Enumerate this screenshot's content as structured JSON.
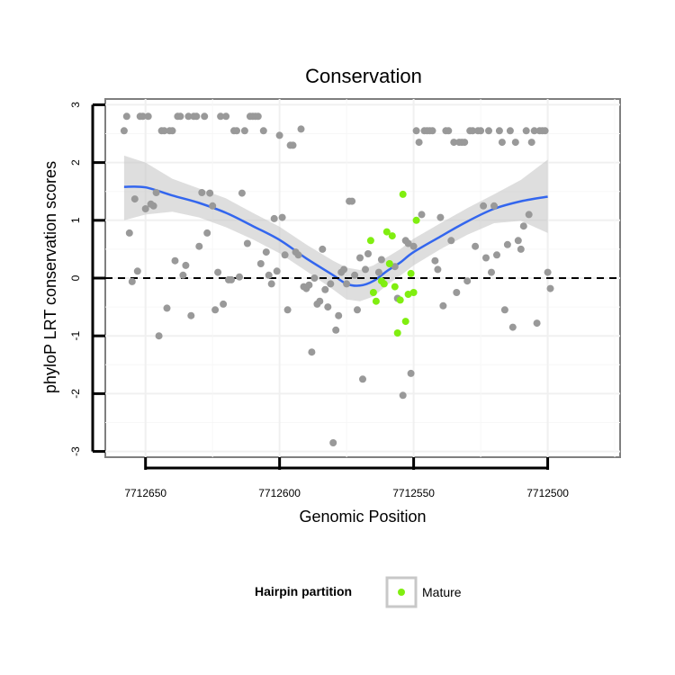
{
  "chart_data": {
    "type": "scatter",
    "title": "Conservation",
    "xlabel": "Genomic Position",
    "ylabel": "phyloP LRT conservation scores",
    "x_reversed": true,
    "xlim": [
      7712665,
      7712473
    ],
    "ylim": [
      -3.1,
      3.1
    ],
    "x_ticks": [
      7712650,
      7712600,
      7712550,
      7712500
    ],
    "x_tick_labels": [
      "7712650",
      "7712600",
      "7712550",
      "7712500"
    ],
    "y_ticks": [
      -3,
      -2,
      -1,
      0,
      1,
      2,
      3
    ],
    "y_tick_labels": [
      "-3",
      "-2",
      "-1",
      "0",
      "1",
      "2",
      "3"
    ],
    "grid": true,
    "reference_line": {
      "y": 0,
      "style": "dashed"
    },
    "colors": {
      "other_points": "#999999",
      "mature_points": "#80ee10",
      "smooth_line": "#3366ee",
      "confidence_band": "#c8c8c8"
    },
    "legend": {
      "title": "Hairpin partition",
      "position": "bottom",
      "entries": [
        {
          "label": "Mature",
          "color": "#80ee10"
        }
      ]
    },
    "series": [
      {
        "role": "other",
        "points": [
          [
            7712658,
            2.55
          ],
          [
            7712657,
            2.8
          ],
          [
            7712656,
            0.78
          ],
          [
            7712655,
            -0.06
          ],
          [
            7712654,
            1.37
          ],
          [
            7712653,
            0.12
          ],
          [
            7712652,
            2.8
          ],
          [
            7712651,
            2.8
          ],
          [
            7712650,
            1.2
          ],
          [
            7712649,
            2.8
          ],
          [
            7712648,
            1.28
          ],
          [
            7712647,
            1.25
          ],
          [
            7712646,
            1.48
          ],
          [
            7712645,
            -1.0
          ],
          [
            7712644,
            2.55
          ],
          [
            7712643,
            2.55
          ],
          [
            7712642,
            -0.52
          ],
          [
            7712641,
            2.55
          ],
          [
            7712640,
            2.55
          ],
          [
            7712639,
            0.3
          ],
          [
            7712638,
            2.8
          ],
          [
            7712637,
            2.8
          ],
          [
            7712636,
            0.05
          ],
          [
            7712635,
            0.22
          ],
          [
            7712634,
            2.8
          ],
          [
            7712633,
            -0.65
          ],
          [
            7712632,
            2.8
          ],
          [
            7712631,
            2.8
          ],
          [
            7712630,
            0.55
          ],
          [
            7712629,
            1.48
          ],
          [
            7712628,
            2.8
          ],
          [
            7712627,
            0.78
          ],
          [
            7712626,
            1.47
          ],
          [
            7712625,
            1.25
          ],
          [
            7712624,
            -0.55
          ],
          [
            7712623,
            0.1
          ],
          [
            7712622,
            2.8
          ],
          [
            7712621,
            -0.45
          ],
          [
            7712620,
            2.8
          ],
          [
            7712619,
            -0.03
          ],
          [
            7712618,
            -0.03
          ],
          [
            7712617,
            2.55
          ],
          [
            7712616,
            2.55
          ],
          [
            7712615,
            0.02
          ],
          [
            7712614,
            1.47
          ],
          [
            7712613,
            2.55
          ],
          [
            7712612,
            0.6
          ],
          [
            7712611,
            2.8
          ],
          [
            7712610,
            2.8
          ],
          [
            7712609,
            2.8
          ],
          [
            7712608,
            2.8
          ],
          [
            7712607,
            0.25
          ],
          [
            7712606,
            2.55
          ],
          [
            7712605,
            0.45
          ],
          [
            7712604,
            0.05
          ],
          [
            7712603,
            -0.1
          ],
          [
            7712602,
            1.03
          ],
          [
            7712601,
            0.12
          ],
          [
            7712600,
            2.47
          ],
          [
            7712599,
            1.05
          ],
          [
            7712598,
            0.4
          ],
          [
            7712597,
            -0.55
          ],
          [
            7712596,
            2.3
          ],
          [
            7712595,
            2.3
          ],
          [
            7712594,
            0.45
          ],
          [
            7712593,
            0.4
          ],
          [
            7712592,
            2.58
          ],
          [
            7712591,
            -0.15
          ],
          [
            7712590,
            -0.18
          ],
          [
            7712589,
            -0.12
          ],
          [
            7712588,
            -1.28
          ],
          [
            7712587,
            0.0
          ],
          [
            7712586,
            -0.45
          ],
          [
            7712585,
            -0.4
          ],
          [
            7712584,
            0.5
          ],
          [
            7712583,
            -0.2
          ],
          [
            7712582,
            -0.5
          ],
          [
            7712581,
            -0.1
          ],
          [
            7712580,
            -2.85
          ],
          [
            7712579,
            -0.9
          ],
          [
            7712578,
            -0.65
          ],
          [
            7712577,
            0.1
          ],
          [
            7712576,
            0.15
          ],
          [
            7712575,
            -0.1
          ],
          [
            7712574,
            1.33
          ],
          [
            7712573,
            1.33
          ],
          [
            7712572,
            0.05
          ],
          [
            7712571,
            -0.55
          ],
          [
            7712570,
            0.35
          ],
          [
            7712569,
            -1.75
          ],
          [
            7712568,
            0.15
          ],
          [
            7712567,
            0.42
          ],
          [
            7712563,
            0.1
          ],
          [
            7712562,
            0.32
          ],
          [
            7712557,
            0.2
          ],
          [
            7712556,
            -0.35
          ],
          [
            7712554,
            -2.03
          ],
          [
            7712553,
            0.65
          ],
          [
            7712552,
            0.6
          ],
          [
            7712551,
            -1.65
          ],
          [
            7712550,
            0.55
          ],
          [
            7712549,
            2.55
          ],
          [
            7712548,
            2.35
          ],
          [
            7712547,
            1.1
          ],
          [
            7712546,
            2.55
          ],
          [
            7712545,
            2.55
          ],
          [
            7712544,
            2.55
          ],
          [
            7712543,
            2.55
          ],
          [
            7712542,
            0.3
          ],
          [
            7712541,
            0.15
          ],
          [
            7712540,
            1.05
          ],
          [
            7712539,
            -0.48
          ],
          [
            7712538,
            2.55
          ],
          [
            7712537,
            2.55
          ],
          [
            7712536,
            0.65
          ],
          [
            7712535,
            2.35
          ],
          [
            7712534,
            -0.25
          ],
          [
            7712533,
            2.35
          ],
          [
            7712532,
            2.35
          ],
          [
            7712531,
            2.35
          ],
          [
            7712530,
            -0.05
          ],
          [
            7712529,
            2.55
          ],
          [
            7712528,
            2.55
          ],
          [
            7712527,
            0.55
          ],
          [
            7712526,
            2.55
          ],
          [
            7712525,
            2.55
          ],
          [
            7712524,
            1.25
          ],
          [
            7712523,
            0.35
          ],
          [
            7712522,
            2.55
          ],
          [
            7712521,
            0.1
          ],
          [
            7712520,
            1.25
          ],
          [
            7712519,
            0.4
          ],
          [
            7712518,
            2.55
          ],
          [
            7712517,
            2.35
          ],
          [
            7712516,
            -0.55
          ],
          [
            7712515,
            0.58
          ],
          [
            7712514,
            2.55
          ],
          [
            7712513,
            -0.85
          ],
          [
            7712512,
            2.35
          ],
          [
            7712511,
            0.65
          ],
          [
            7712510,
            0.5
          ],
          [
            7712509,
            0.9
          ],
          [
            7712508,
            2.55
          ],
          [
            7712507,
            1.1
          ],
          [
            7712506,
            2.35
          ],
          [
            7712505,
            2.55
          ],
          [
            7712504,
            -0.78
          ],
          [
            7712503,
            2.55
          ],
          [
            7712502,
            2.55
          ],
          [
            7712501,
            2.55
          ],
          [
            7712500,
            0.1
          ],
          [
            7712499,
            -0.18
          ]
        ]
      },
      {
        "name": "Mature",
        "role": "mature",
        "points": [
          [
            7712566,
            0.65
          ],
          [
            7712565,
            -0.25
          ],
          [
            7712564,
            -0.4
          ],
          [
            7712562,
            -0.05
          ],
          [
            7712561,
            -0.1
          ],
          [
            7712560,
            0.8
          ],
          [
            7712559,
            0.25
          ],
          [
            7712558,
            0.73
          ],
          [
            7712557,
            -0.15
          ],
          [
            7712556,
            -0.95
          ],
          [
            7712555,
            -0.38
          ],
          [
            7712554,
            1.45
          ],
          [
            7712553,
            -0.75
          ],
          [
            7712552,
            -0.28
          ],
          [
            7712551,
            0.08
          ],
          [
            7712550,
            -0.25
          ],
          [
            7712549,
            1.0
          ]
        ]
      }
    ],
    "smooth": [
      [
        7712658,
        1.58
      ],
      [
        7712650,
        1.57
      ],
      [
        7712640,
        1.43
      ],
      [
        7712630,
        1.3
      ],
      [
        7712620,
        1.13
      ],
      [
        7712610,
        0.9
      ],
      [
        7712600,
        0.66
      ],
      [
        7712590,
        0.34
      ],
      [
        7712580,
        0.05
      ],
      [
        7712575,
        -0.1
      ],
      [
        7712570,
        -0.13
      ],
      [
        7712565,
        -0.05
      ],
      [
        7712560,
        0.12
      ],
      [
        7712555,
        0.27
      ],
      [
        7712550,
        0.45
      ],
      [
        7712540,
        0.72
      ],
      [
        7712530,
        0.98
      ],
      [
        7712520,
        1.2
      ],
      [
        7712510,
        1.33
      ],
      [
        7712500,
        1.41
      ]
    ],
    "smooth_band": [
      [
        7712658,
        1.0,
        2.12
      ],
      [
        7712650,
        1.1,
        2.0
      ],
      [
        7712640,
        1.15,
        1.72
      ],
      [
        7712630,
        1.05,
        1.55
      ],
      [
        7712620,
        0.88,
        1.38
      ],
      [
        7712610,
        0.67,
        1.13
      ],
      [
        7712600,
        0.43,
        0.89
      ],
      [
        7712590,
        0.12,
        0.58
      ],
      [
        7712580,
        -0.2,
        0.3
      ],
      [
        7712575,
        -0.37,
        0.18
      ],
      [
        7712570,
        -0.4,
        0.14
      ],
      [
        7712565,
        -0.32,
        0.22
      ],
      [
        7712560,
        -0.12,
        0.36
      ],
      [
        7712555,
        0.04,
        0.5
      ],
      [
        7712550,
        0.22,
        0.68
      ],
      [
        7712540,
        0.5,
        0.95
      ],
      [
        7712530,
        0.75,
        1.21
      ],
      [
        7712520,
        0.95,
        1.45
      ],
      [
        7712510,
        0.99,
        1.7
      ],
      [
        7712500,
        0.78,
        2.05
      ]
    ]
  }
}
